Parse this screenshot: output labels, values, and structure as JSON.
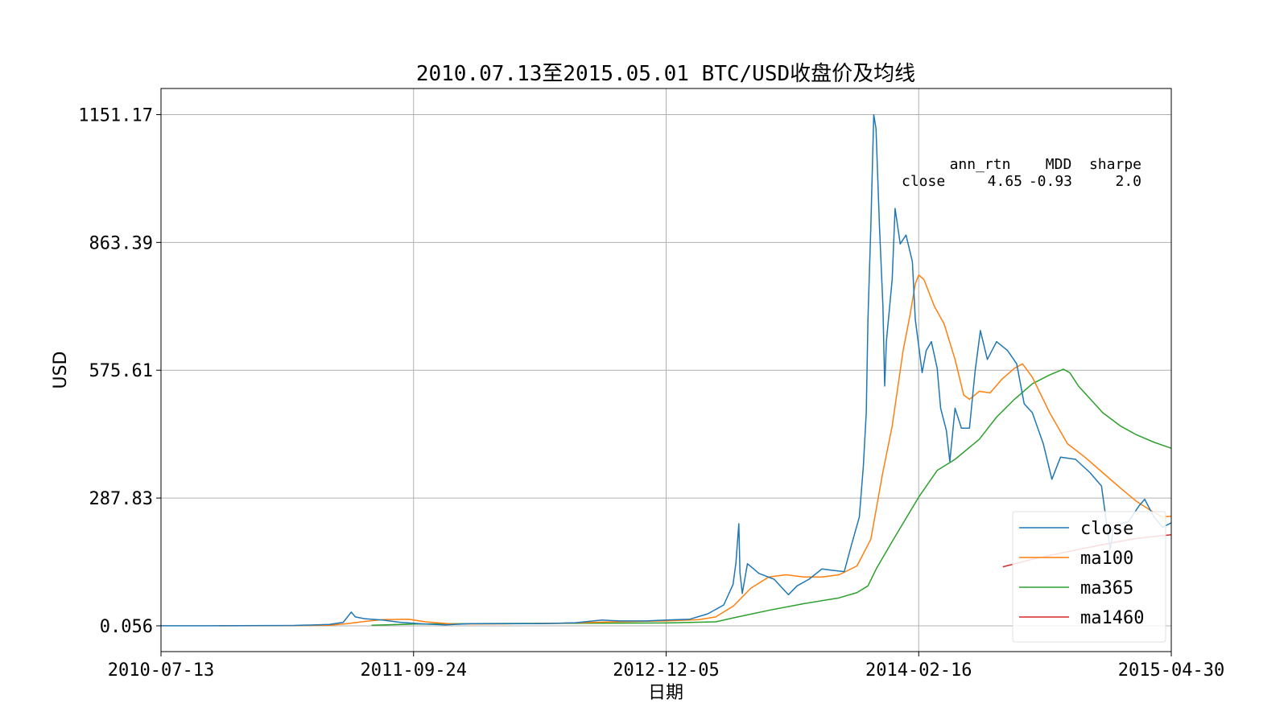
{
  "chart_data": {
    "type": "line",
    "title": "2010.07.13至2015.05.01 BTC/USD收盘价及均线",
    "xlabel": "日期",
    "ylabel": "USD",
    "x_ticks": [
      "2010-07-13",
      "2011-09-24",
      "2012-12-05",
      "2014-02-16",
      "2015-04-30"
    ],
    "y_ticks": [
      "0.056",
      "287.83",
      "575.61",
      "863.39",
      "1151.17"
    ],
    "xlim": [
      "2010-07-13",
      "2015-04-30"
    ],
    "ylim": [
      -58,
      1210
    ],
    "grid": true,
    "legend_position": "lower-right",
    "stats_table": {
      "header": "ann_rtn    MDD  sharpe",
      "row_label": "close",
      "ann_rtn": "4.65",
      "mdd": "-0.93",
      "sharpe": "2.0"
    },
    "series": [
      {
        "name": "close",
        "color": "#1f77b4",
        "points": [
          [
            "2010-07-13",
            0.06
          ],
          [
            "2010-12-01",
            0.25
          ],
          [
            "2011-03-01",
            0.9
          ],
          [
            "2011-05-01",
            3
          ],
          [
            "2011-05-25",
            8
          ],
          [
            "2011-06-08",
            31
          ],
          [
            "2011-06-15",
            20
          ],
          [
            "2011-07-01",
            16
          ],
          [
            "2011-08-01",
            13
          ],
          [
            "2011-09-01",
            8
          ],
          [
            "2011-10-15",
            4
          ],
          [
            "2011-11-18",
            2.2
          ],
          [
            "2012-01-01",
            5
          ],
          [
            "2012-03-01",
            5
          ],
          [
            "2012-05-01",
            5
          ],
          [
            "2012-07-01",
            7
          ],
          [
            "2012-08-16",
            13
          ],
          [
            "2012-09-15",
            11
          ],
          [
            "2012-11-01",
            11
          ],
          [
            "2012-12-05",
            13
          ],
          [
            "2013-01-15",
            15
          ],
          [
            "2013-02-15",
            27
          ],
          [
            "2013-03-15",
            47
          ],
          [
            "2013-03-31",
            93
          ],
          [
            "2013-04-05",
            142
          ],
          [
            "2013-04-10",
            230
          ],
          [
            "2013-04-12",
            120
          ],
          [
            "2013-04-16",
            73
          ],
          [
            "2013-04-25",
            140
          ],
          [
            "2013-05-15",
            118
          ],
          [
            "2013-06-10",
            105
          ],
          [
            "2013-07-05",
            70
          ],
          [
            "2013-07-20",
            90
          ],
          [
            "2013-08-10",
            105
          ],
          [
            "2013-09-01",
            128
          ],
          [
            "2013-09-20",
            125
          ],
          [
            "2013-10-10",
            122
          ],
          [
            "2013-10-22",
            180
          ],
          [
            "2013-11-05",
            245
          ],
          [
            "2013-11-12",
            360
          ],
          [
            "2013-11-17",
            480
          ],
          [
            "2013-11-20",
            690
          ],
          [
            "2013-11-25",
            900
          ],
          [
            "2013-11-30",
            1151
          ],
          [
            "2013-12-04",
            1120
          ],
          [
            "2013-12-10",
            900
          ],
          [
            "2013-12-16",
            720
          ],
          [
            "2013-12-19",
            540
          ],
          [
            "2013-12-22",
            640
          ],
          [
            "2014-01-01",
            780
          ],
          [
            "2014-01-06",
            940
          ],
          [
            "2014-01-15",
            860
          ],
          [
            "2014-01-25",
            880
          ],
          [
            "2014-02-05",
            820
          ],
          [
            "2014-02-10",
            690
          ],
          [
            "2014-02-16",
            630
          ],
          [
            "2014-02-22",
            570
          ],
          [
            "2014-03-01",
            620
          ],
          [
            "2014-03-10",
            640
          ],
          [
            "2014-03-20",
            580
          ],
          [
            "2014-03-26",
            490
          ],
          [
            "2014-04-05",
            440
          ],
          [
            "2014-04-11",
            370
          ],
          [
            "2014-04-20",
            490
          ],
          [
            "2014-05-01",
            445
          ],
          [
            "2014-05-15",
            445
          ],
          [
            "2014-05-25",
            575
          ],
          [
            "2014-06-03",
            665
          ],
          [
            "2014-06-15",
            600
          ],
          [
            "2014-07-01",
            640
          ],
          [
            "2014-07-20",
            620
          ],
          [
            "2014-08-05",
            590
          ],
          [
            "2014-08-18",
            500
          ],
          [
            "2014-09-01",
            480
          ],
          [
            "2014-09-20",
            410
          ],
          [
            "2014-10-05",
            330
          ],
          [
            "2014-10-20",
            380
          ],
          [
            "2014-11-15",
            375
          ],
          [
            "2014-12-10",
            345
          ],
          [
            "2014-12-30",
            315
          ],
          [
            "2015-01-14",
            172
          ],
          [
            "2015-01-20",
            220
          ],
          [
            "2015-02-01",
            230
          ],
          [
            "2015-02-15",
            235
          ],
          [
            "2015-03-05",
            270
          ],
          [
            "2015-03-15",
            285
          ],
          [
            "2015-03-31",
            245
          ],
          [
            "2015-04-15",
            222
          ],
          [
            "2015-04-30",
            232
          ]
        ]
      },
      {
        "name": "ma100",
        "color": "#ff7f0e",
        "points": [
          [
            "2010-10-21",
            0.07
          ],
          [
            "2011-02-01",
            0.4
          ],
          [
            "2011-05-01",
            1.5
          ],
          [
            "2011-06-01",
            5
          ],
          [
            "2011-07-01",
            10
          ],
          [
            "2011-08-01",
            14
          ],
          [
            "2011-09-15",
            15
          ],
          [
            "2011-10-15",
            9
          ],
          [
            "2011-12-01",
            4
          ],
          [
            "2012-03-01",
            4.5
          ],
          [
            "2012-06-01",
            5.5
          ],
          [
            "2012-09-01",
            9
          ],
          [
            "2012-12-05",
            11
          ],
          [
            "2013-01-31",
            14
          ],
          [
            "2013-03-01",
            20
          ],
          [
            "2013-04-01",
            45
          ],
          [
            "2013-05-01",
            85
          ],
          [
            "2013-06-01",
            110
          ],
          [
            "2013-07-01",
            115
          ],
          [
            "2013-08-01",
            110
          ],
          [
            "2013-09-01",
            110
          ],
          [
            "2013-10-01",
            115
          ],
          [
            "2013-11-01",
            135
          ],
          [
            "2013-11-25",
            195
          ],
          [
            "2013-12-15",
            340
          ],
          [
            "2014-01-01",
            450
          ],
          [
            "2014-01-20",
            620
          ],
          [
            "2014-02-01",
            700
          ],
          [
            "2014-02-10",
            770
          ],
          [
            "2014-02-16",
            790
          ],
          [
            "2014-02-25",
            780
          ],
          [
            "2014-03-15",
            720
          ],
          [
            "2014-04-01",
            680
          ],
          [
            "2014-04-20",
            600
          ],
          [
            "2014-05-05",
            520
          ],
          [
            "2014-05-15",
            510
          ],
          [
            "2014-06-01",
            528
          ],
          [
            "2014-06-20",
            525
          ],
          [
            "2014-07-10",
            555
          ],
          [
            "2014-08-01",
            580
          ],
          [
            "2014-08-15",
            590
          ],
          [
            "2014-09-01",
            560
          ],
          [
            "2014-10-01",
            480
          ],
          [
            "2014-11-01",
            410
          ],
          [
            "2014-12-01",
            380
          ],
          [
            "2015-01-01",
            345
          ],
          [
            "2015-02-01",
            310
          ],
          [
            "2015-03-01",
            280
          ],
          [
            "2015-03-25",
            260
          ],
          [
            "2015-04-15",
            245
          ],
          [
            "2015-04-30",
            247
          ]
        ]
      },
      {
        "name": "ma365",
        "color": "#2ca02c",
        "points": [
          [
            "2011-07-13",
            1.2
          ],
          [
            "2011-09-24",
            4
          ],
          [
            "2012-01-01",
            5
          ],
          [
            "2012-06-01",
            5.5
          ],
          [
            "2012-12-05",
            6.5
          ],
          [
            "2013-03-01",
            9
          ],
          [
            "2013-04-01",
            18
          ],
          [
            "2013-06-01",
            35
          ],
          [
            "2013-08-01",
            50
          ],
          [
            "2013-10-01",
            63
          ],
          [
            "2013-11-01",
            75
          ],
          [
            "2013-11-20",
            90
          ],
          [
            "2013-12-05",
            130
          ],
          [
            "2014-01-01",
            190
          ],
          [
            "2014-02-16",
            290
          ],
          [
            "2014-03-20",
            350
          ],
          [
            "2014-04-20",
            375
          ],
          [
            "2014-06-01",
            420
          ],
          [
            "2014-07-01",
            470
          ],
          [
            "2014-08-01",
            510
          ],
          [
            "2014-09-01",
            545
          ],
          [
            "2014-10-01",
            565
          ],
          [
            "2014-10-25",
            578
          ],
          [
            "2014-11-05",
            570
          ],
          [
            "2014-11-20",
            540
          ],
          [
            "2015-01-01",
            480
          ],
          [
            "2015-02-01",
            450
          ],
          [
            "2015-03-01",
            430
          ],
          [
            "2015-04-01",
            413
          ],
          [
            "2015-04-30",
            400
          ]
        ]
      },
      {
        "name": "ma1460",
        "color": "#d62728",
        "points": [
          [
            "2014-07-12",
            133
          ],
          [
            "2014-09-01",
            150
          ],
          [
            "2014-11-01",
            167
          ],
          [
            "2015-01-01",
            183
          ],
          [
            "2015-03-01",
            197
          ],
          [
            "2015-04-30",
            205
          ]
        ]
      }
    ]
  }
}
